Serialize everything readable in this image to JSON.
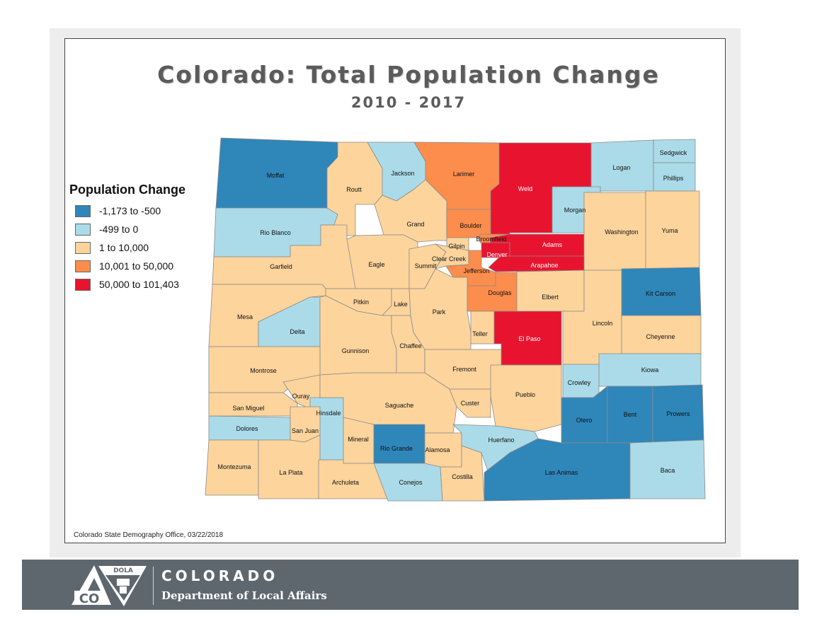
{
  "title": "Colorado: Total Population Change",
  "subtitle": "2010 - 2017",
  "legend": {
    "title": "Population Change",
    "items": [
      {
        "label": "-1,173 to -500",
        "color": "#2f86b9"
      },
      {
        "label": "-499 to 0",
        "color": "#abdbe8"
      },
      {
        "label": "1 to 10,000",
        "color": "#fdd49c"
      },
      {
        "label": "10,001 to 50,000",
        "color": "#fc8d4c"
      },
      {
        "label": "50,000 to 101,403",
        "color": "#e8142f"
      }
    ]
  },
  "counties": [
    {
      "name": "Moffat",
      "class": 0
    },
    {
      "name": "Routt",
      "class": 2
    },
    {
      "name": "Jackson",
      "class": 1
    },
    {
      "name": "Larimer",
      "class": 3
    },
    {
      "name": "Weld",
      "class": 4
    },
    {
      "name": "Logan",
      "class": 1
    },
    {
      "name": "Sedgwick",
      "class": 1
    },
    {
      "name": "Phillips",
      "class": 1
    },
    {
      "name": "Morgan",
      "class": 1
    },
    {
      "name": "Rio Blanco",
      "class": 1
    },
    {
      "name": "Grand",
      "class": 2
    },
    {
      "name": "Boulder",
      "class": 3
    },
    {
      "name": "Broomfield",
      "class": 3
    },
    {
      "name": "Gilpin",
      "class": 2
    },
    {
      "name": "Adams",
      "class": 4
    },
    {
      "name": "Denver",
      "class": 4
    },
    {
      "name": "Washington",
      "class": 2
    },
    {
      "name": "Yuma",
      "class": 2
    },
    {
      "name": "Garfield",
      "class": 2
    },
    {
      "name": "Eagle",
      "class": 2
    },
    {
      "name": "Summit",
      "class": 2
    },
    {
      "name": "Clear Creek",
      "class": 2
    },
    {
      "name": "Jefferson",
      "class": 3
    },
    {
      "name": "Arapahoe",
      "class": 4
    },
    {
      "name": "Kit Carson",
      "class": 0
    },
    {
      "name": "Mesa",
      "class": 2
    },
    {
      "name": "Pitkin",
      "class": 2
    },
    {
      "name": "Lake",
      "class": 2
    },
    {
      "name": "Park",
      "class": 2
    },
    {
      "name": "Douglas",
      "class": 3
    },
    {
      "name": "Elbert",
      "class": 2
    },
    {
      "name": "Lincoln",
      "class": 2
    },
    {
      "name": "Delta",
      "class": 1
    },
    {
      "name": "Teller",
      "class": 2
    },
    {
      "name": "El Paso",
      "class": 4
    },
    {
      "name": "Cheyenne",
      "class": 2
    },
    {
      "name": "Gunnison",
      "class": 2
    },
    {
      "name": "Chaffee",
      "class": 2
    },
    {
      "name": "Fremont",
      "class": 2
    },
    {
      "name": "Montrose",
      "class": 2
    },
    {
      "name": "Kiowa",
      "class": 1
    },
    {
      "name": "Crowley",
      "class": 1
    },
    {
      "name": "Ouray",
      "class": 2
    },
    {
      "name": "Pueblo",
      "class": 2
    },
    {
      "name": "San Miguel",
      "class": 2
    },
    {
      "name": "Hinsdale",
      "class": 1
    },
    {
      "name": "Saguache",
      "class": 2
    },
    {
      "name": "Custer",
      "class": 2
    },
    {
      "name": "Otero",
      "class": 0
    },
    {
      "name": "Bent",
      "class": 0
    },
    {
      "name": "Prowers",
      "class": 0
    },
    {
      "name": "Dolores",
      "class": 1
    },
    {
      "name": "San Juan",
      "class": 2
    },
    {
      "name": "Mineral",
      "class": 2
    },
    {
      "name": "Rio Grande",
      "class": 0
    },
    {
      "name": "Alamosa",
      "class": 2
    },
    {
      "name": "Huerfano",
      "class": 1
    },
    {
      "name": "Montezuma",
      "class": 2
    },
    {
      "name": "La Plata",
      "class": 2
    },
    {
      "name": "Archuleta",
      "class": 2
    },
    {
      "name": "Conejos",
      "class": 1
    },
    {
      "name": "Costilla",
      "class": 2
    },
    {
      "name": "Las Animas",
      "class": 0
    },
    {
      "name": "Baca",
      "class": 1
    }
  ],
  "source": "Colorado State Demography Office, 03/22/2018",
  "footer": {
    "state": "COLORADO",
    "department": "Department of Local Affairs",
    "logo_top": "DOLA",
    "logo_bottom": "CO"
  }
}
